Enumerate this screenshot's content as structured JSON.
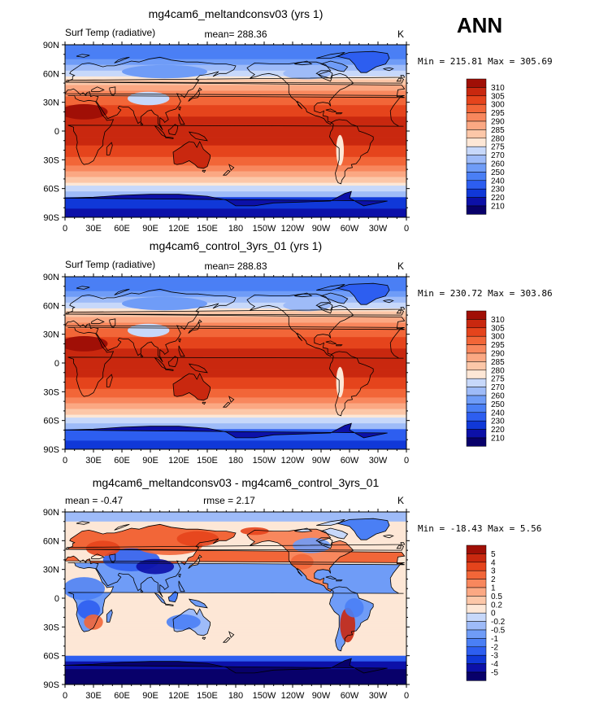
{
  "season": "ANN",
  "colors": {
    "abs_levels": [
      "#08006a",
      "#0c10a8",
      "#1038d8",
      "#2d5ef0",
      "#4a7ff5",
      "#6f9cf7",
      "#9ebbf8",
      "#c7d8fa",
      "#fde7d6",
      "#fcc7a8",
      "#fba883",
      "#f8875d",
      "#f26638",
      "#e5441c",
      "#c9280f",
      "#a00f06"
    ],
    "diff_levels": [
      "#08006a",
      "#0c10a8",
      "#1038d8",
      "#2d5ef0",
      "#4a7ff5",
      "#6f9cf7",
      "#9ebbf8",
      "#c7d8fa",
      "#fde7d6",
      "#fcc7a8",
      "#fba883",
      "#f8875d",
      "#f26638",
      "#e5441c",
      "#c9280f",
      "#a00f06"
    ],
    "coast": "#000000"
  },
  "panels": [
    {
      "title": "mg4cam6_meltandconsv03 (yrs 1)",
      "left_label": "Surf Temp (radiative)",
      "center_label": "mean=  288.36",
      "units": "K",
      "minmax": "Min = 215.81 Max = 305.69",
      "lat_ticks": [
        "90N",
        "60N",
        "30N",
        "0",
        "30S",
        "60S",
        "90S"
      ],
      "lon_ticks": [
        "0",
        "30E",
        "60E",
        "90E",
        "120E",
        "150E",
        "180",
        "150W",
        "120W",
        "90W",
        "60W",
        "30W",
        "0"
      ],
      "colorbar": [
        "310",
        "305",
        "300",
        "295",
        "290",
        "285",
        "280",
        "275",
        "270",
        "260",
        "250",
        "240",
        "230",
        "220",
        "210"
      ]
    },
    {
      "title": "mg4cam6_control_3yrs_01 (yrs 1)",
      "left_label": "Surf Temp (radiative)",
      "center_label": "mean=  288.83",
      "units": "K",
      "minmax": "Min = 230.72 Max = 303.86",
      "lat_ticks": [
        "90N",
        "60N",
        "30N",
        "0",
        "30S",
        "60S",
        "90S"
      ],
      "lon_ticks": [
        "0",
        "30E",
        "60E",
        "90E",
        "120E",
        "150E",
        "180",
        "150W",
        "120W",
        "90W",
        "60W",
        "30W",
        "0"
      ],
      "colorbar": [
        "310",
        "305",
        "300",
        "295",
        "290",
        "285",
        "280",
        "275",
        "270",
        "260",
        "250",
        "240",
        "230",
        "220",
        "210"
      ]
    },
    {
      "title": "mg4cam6_meltandconsv03 - mg4cam6_control_3yrs_01",
      "left_label": "mean =   -0.47",
      "center_label": "rmse =     2.17",
      "units": "K",
      "minmax": "Min = -18.43 Max =    5.56",
      "lat_ticks": [
        "90N",
        "60N",
        "30N",
        "0",
        "30S",
        "60S",
        "90S"
      ],
      "lon_ticks": [
        "0",
        "30E",
        "60E",
        "90E",
        "120E",
        "150E",
        "180",
        "150W",
        "120W",
        "90W",
        "60W",
        "30W",
        "0"
      ],
      "colorbar": [
        "5",
        "4",
        "3",
        "2",
        "1",
        "0.5",
        "0.2",
        "0",
        "-0.2",
        "-0.5",
        "-1",
        "-2",
        "-3",
        "-4",
        "-5"
      ]
    }
  ]
}
